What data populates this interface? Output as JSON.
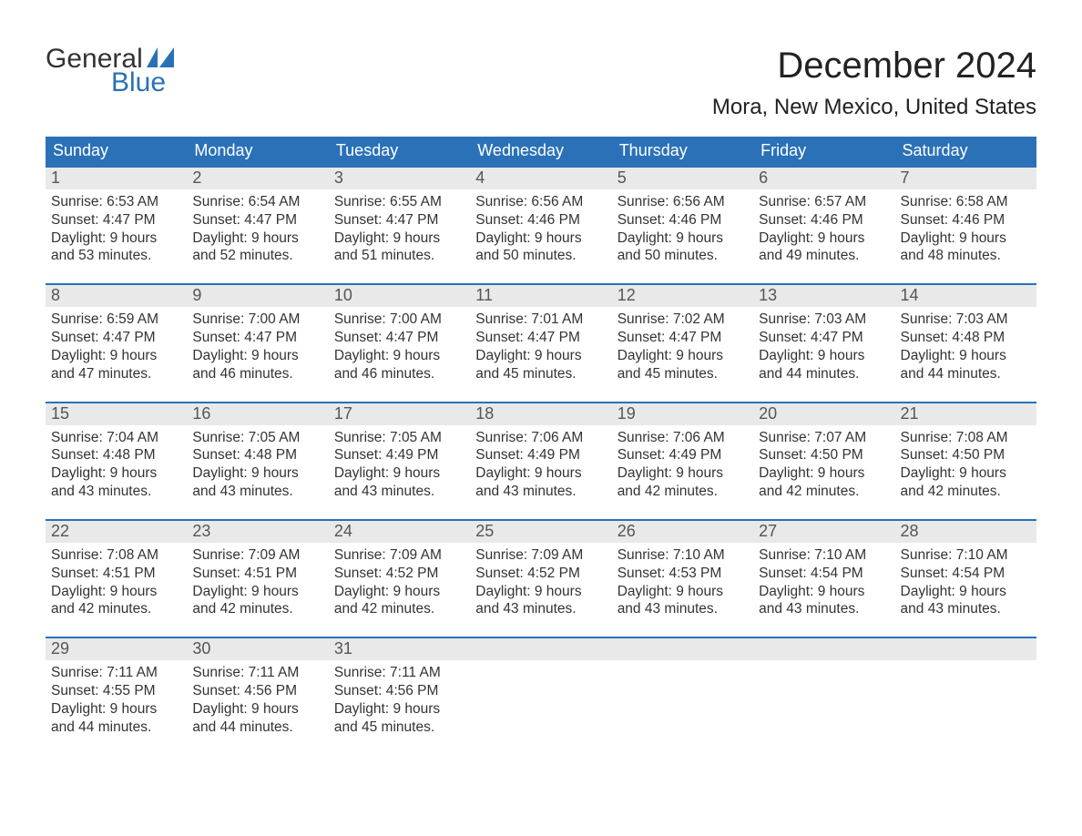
{
  "logo": {
    "word1": "General",
    "word2": "Blue",
    "text_color": "#333333",
    "accent_color": "#2a71b8",
    "sail_color": "#2a71b8"
  },
  "header": {
    "title": "December 2024",
    "location": "Mora, New Mexico, United States",
    "title_fontsize": 40,
    "location_fontsize": 24
  },
  "calendar": {
    "header_bg": "#2a71b8",
    "header_text": "#ffffff",
    "week_border": "#2a71b8",
    "daynum_bg": "#e9e9e9",
    "daynum_color": "#555555",
    "body_text_color": "#333333",
    "days_of_week": [
      "Sunday",
      "Monday",
      "Tuesday",
      "Wednesday",
      "Thursday",
      "Friday",
      "Saturday"
    ],
    "weeks": [
      [
        {
          "n": "1",
          "sunrise": "Sunrise: 6:53 AM",
          "sunset": "Sunset: 4:47 PM",
          "dl1": "Daylight: 9 hours",
          "dl2": "and 53 minutes."
        },
        {
          "n": "2",
          "sunrise": "Sunrise: 6:54 AM",
          "sunset": "Sunset: 4:47 PM",
          "dl1": "Daylight: 9 hours",
          "dl2": "and 52 minutes."
        },
        {
          "n": "3",
          "sunrise": "Sunrise: 6:55 AM",
          "sunset": "Sunset: 4:47 PM",
          "dl1": "Daylight: 9 hours",
          "dl2": "and 51 minutes."
        },
        {
          "n": "4",
          "sunrise": "Sunrise: 6:56 AM",
          "sunset": "Sunset: 4:46 PM",
          "dl1": "Daylight: 9 hours",
          "dl2": "and 50 minutes."
        },
        {
          "n": "5",
          "sunrise": "Sunrise: 6:56 AM",
          "sunset": "Sunset: 4:46 PM",
          "dl1": "Daylight: 9 hours",
          "dl2": "and 50 minutes."
        },
        {
          "n": "6",
          "sunrise": "Sunrise: 6:57 AM",
          "sunset": "Sunset: 4:46 PM",
          "dl1": "Daylight: 9 hours",
          "dl2": "and 49 minutes."
        },
        {
          "n": "7",
          "sunrise": "Sunrise: 6:58 AM",
          "sunset": "Sunset: 4:46 PM",
          "dl1": "Daylight: 9 hours",
          "dl2": "and 48 minutes."
        }
      ],
      [
        {
          "n": "8",
          "sunrise": "Sunrise: 6:59 AM",
          "sunset": "Sunset: 4:47 PM",
          "dl1": "Daylight: 9 hours",
          "dl2": "and 47 minutes."
        },
        {
          "n": "9",
          "sunrise": "Sunrise: 7:00 AM",
          "sunset": "Sunset: 4:47 PM",
          "dl1": "Daylight: 9 hours",
          "dl2": "and 46 minutes."
        },
        {
          "n": "10",
          "sunrise": "Sunrise: 7:00 AM",
          "sunset": "Sunset: 4:47 PM",
          "dl1": "Daylight: 9 hours",
          "dl2": "and 46 minutes."
        },
        {
          "n": "11",
          "sunrise": "Sunrise: 7:01 AM",
          "sunset": "Sunset: 4:47 PM",
          "dl1": "Daylight: 9 hours",
          "dl2": "and 45 minutes."
        },
        {
          "n": "12",
          "sunrise": "Sunrise: 7:02 AM",
          "sunset": "Sunset: 4:47 PM",
          "dl1": "Daylight: 9 hours",
          "dl2": "and 45 minutes."
        },
        {
          "n": "13",
          "sunrise": "Sunrise: 7:03 AM",
          "sunset": "Sunset: 4:47 PM",
          "dl1": "Daylight: 9 hours",
          "dl2": "and 44 minutes."
        },
        {
          "n": "14",
          "sunrise": "Sunrise: 7:03 AM",
          "sunset": "Sunset: 4:48 PM",
          "dl1": "Daylight: 9 hours",
          "dl2": "and 44 minutes."
        }
      ],
      [
        {
          "n": "15",
          "sunrise": "Sunrise: 7:04 AM",
          "sunset": "Sunset: 4:48 PM",
          "dl1": "Daylight: 9 hours",
          "dl2": "and 43 minutes."
        },
        {
          "n": "16",
          "sunrise": "Sunrise: 7:05 AM",
          "sunset": "Sunset: 4:48 PM",
          "dl1": "Daylight: 9 hours",
          "dl2": "and 43 minutes."
        },
        {
          "n": "17",
          "sunrise": "Sunrise: 7:05 AM",
          "sunset": "Sunset: 4:49 PM",
          "dl1": "Daylight: 9 hours",
          "dl2": "and 43 minutes."
        },
        {
          "n": "18",
          "sunrise": "Sunrise: 7:06 AM",
          "sunset": "Sunset: 4:49 PM",
          "dl1": "Daylight: 9 hours",
          "dl2": "and 43 minutes."
        },
        {
          "n": "19",
          "sunrise": "Sunrise: 7:06 AM",
          "sunset": "Sunset: 4:49 PM",
          "dl1": "Daylight: 9 hours",
          "dl2": "and 42 minutes."
        },
        {
          "n": "20",
          "sunrise": "Sunrise: 7:07 AM",
          "sunset": "Sunset: 4:50 PM",
          "dl1": "Daylight: 9 hours",
          "dl2": "and 42 minutes."
        },
        {
          "n": "21",
          "sunrise": "Sunrise: 7:08 AM",
          "sunset": "Sunset: 4:50 PM",
          "dl1": "Daylight: 9 hours",
          "dl2": "and 42 minutes."
        }
      ],
      [
        {
          "n": "22",
          "sunrise": "Sunrise: 7:08 AM",
          "sunset": "Sunset: 4:51 PM",
          "dl1": "Daylight: 9 hours",
          "dl2": "and 42 minutes."
        },
        {
          "n": "23",
          "sunrise": "Sunrise: 7:09 AM",
          "sunset": "Sunset: 4:51 PM",
          "dl1": "Daylight: 9 hours",
          "dl2": "and 42 minutes."
        },
        {
          "n": "24",
          "sunrise": "Sunrise: 7:09 AM",
          "sunset": "Sunset: 4:52 PM",
          "dl1": "Daylight: 9 hours",
          "dl2": "and 42 minutes."
        },
        {
          "n": "25",
          "sunrise": "Sunrise: 7:09 AM",
          "sunset": "Sunset: 4:52 PM",
          "dl1": "Daylight: 9 hours",
          "dl2": "and 43 minutes."
        },
        {
          "n": "26",
          "sunrise": "Sunrise: 7:10 AM",
          "sunset": "Sunset: 4:53 PM",
          "dl1": "Daylight: 9 hours",
          "dl2": "and 43 minutes."
        },
        {
          "n": "27",
          "sunrise": "Sunrise: 7:10 AM",
          "sunset": "Sunset: 4:54 PM",
          "dl1": "Daylight: 9 hours",
          "dl2": "and 43 minutes."
        },
        {
          "n": "28",
          "sunrise": "Sunrise: 7:10 AM",
          "sunset": "Sunset: 4:54 PM",
          "dl1": "Daylight: 9 hours",
          "dl2": "and 43 minutes."
        }
      ],
      [
        {
          "n": "29",
          "sunrise": "Sunrise: 7:11 AM",
          "sunset": "Sunset: 4:55 PM",
          "dl1": "Daylight: 9 hours",
          "dl2": "and 44 minutes."
        },
        {
          "n": "30",
          "sunrise": "Sunrise: 7:11 AM",
          "sunset": "Sunset: 4:56 PM",
          "dl1": "Daylight: 9 hours",
          "dl2": "and 44 minutes."
        },
        {
          "n": "31",
          "sunrise": "Sunrise: 7:11 AM",
          "sunset": "Sunset: 4:56 PM",
          "dl1": "Daylight: 9 hours",
          "dl2": "and 45 minutes."
        },
        {
          "empty": true
        },
        {
          "empty": true
        },
        {
          "empty": true
        },
        {
          "empty": true
        }
      ]
    ]
  }
}
